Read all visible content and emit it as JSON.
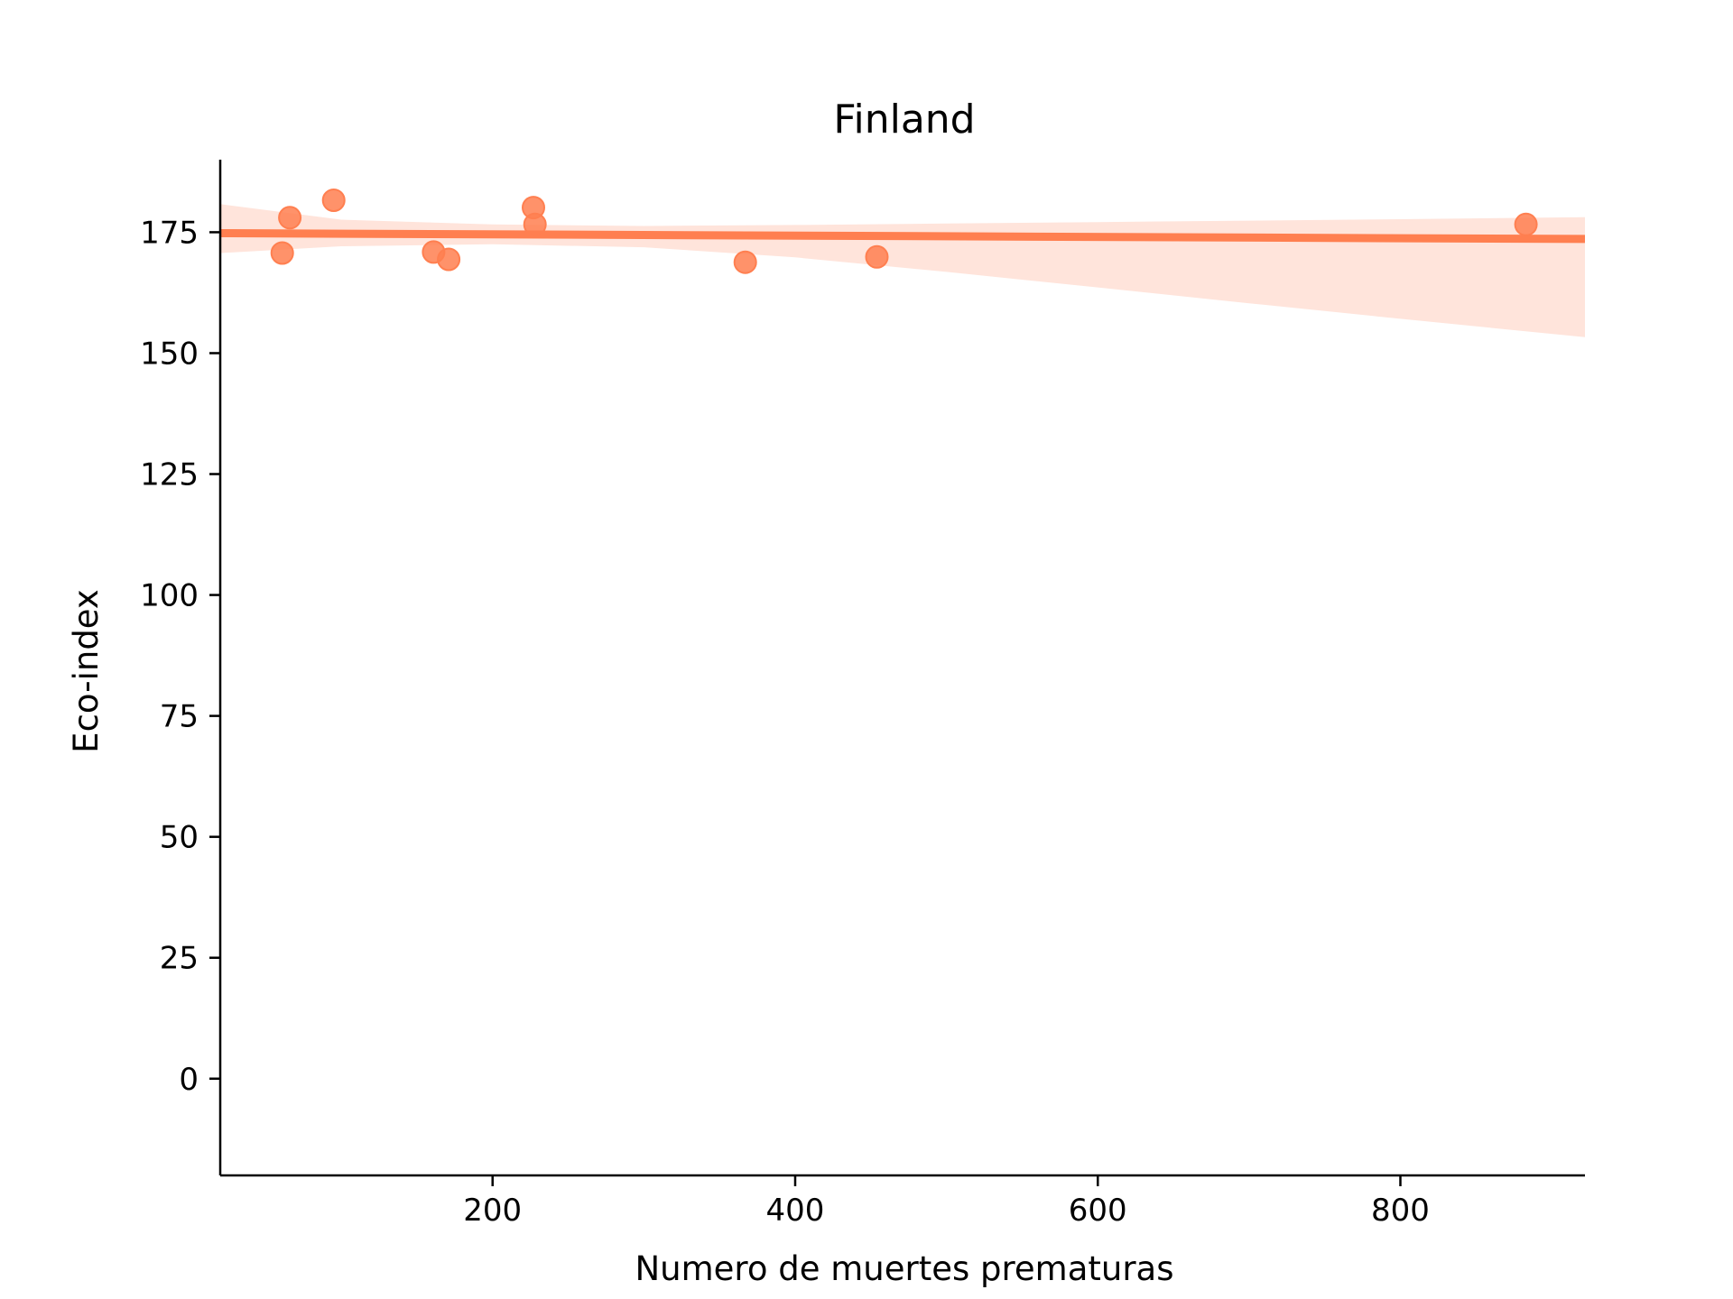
{
  "chart_data": {
    "type": "scatter",
    "title": "Finland",
    "xlabel": "Numero de muertes prematuras",
    "ylabel": "Eco-index",
    "xlim": [
      20,
      922
    ],
    "ylim": [
      -20,
      190
    ],
    "xticks": [
      200,
      400,
      600,
      800
    ],
    "yticks": [
      0,
      25,
      50,
      75,
      100,
      125,
      150,
      175
    ],
    "grid": false,
    "legend": "none",
    "colors": {
      "points": "#ff7f50",
      "regression_line": "#ff7f50",
      "confidence_band": "#ffe4db",
      "axes": "#000000"
    },
    "series": [
      {
        "points": [
          {
            "x": 61,
            "y": 170.7
          },
          {
            "x": 66,
            "y": 178.0
          },
          {
            "x": 95,
            "y": 181.6
          },
          {
            "x": 161,
            "y": 170.9
          },
          {
            "x": 171,
            "y": 169.4
          },
          {
            "x": 227,
            "y": 180.1
          },
          {
            "x": 228,
            "y": 176.6
          },
          {
            "x": 367,
            "y": 168.8
          },
          {
            "x": 454,
            "y": 169.9
          },
          {
            "x": 883,
            "y": 176.6
          }
        ]
      }
    ],
    "regression": {
      "x": [
        20,
        922
      ],
      "y": [
        174.8,
        173.6
      ]
    },
    "confidence_band": {
      "x": [
        20,
        100,
        200,
        300,
        400,
        500,
        600,
        700,
        800,
        922
      ],
      "upper": [
        180.8,
        177.6,
        176.6,
        176.3,
        176.5,
        176.8,
        177.1,
        177.4,
        177.7,
        178.1
      ],
      "lower": [
        170.7,
        172.1,
        172.5,
        171.9,
        169.8,
        166.8,
        163.6,
        160.3,
        157.1,
        153.3
      ]
    }
  }
}
